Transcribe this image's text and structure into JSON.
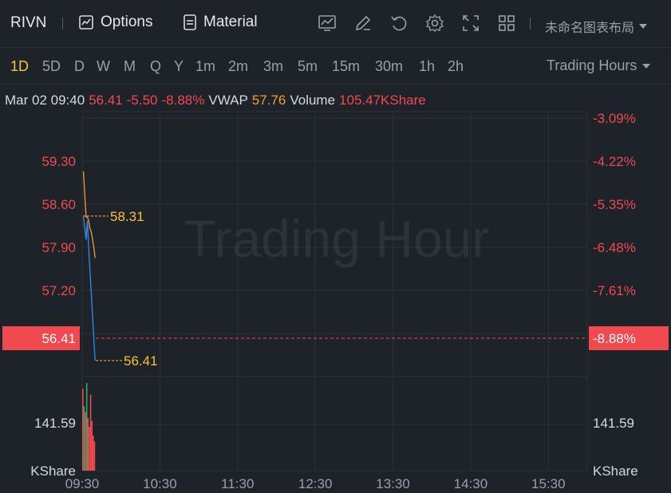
{
  "toolbar": {
    "ticker": "RIVN",
    "options_label": "Options",
    "material_label": "Material",
    "layout_name": "未命名图表布局",
    "icons": [
      "chart-icon",
      "draw-icon",
      "undo-icon",
      "settings-icon",
      "fullscreen-icon",
      "grid-layout-icon"
    ]
  },
  "periods": {
    "items": [
      "1D",
      "5D",
      "D",
      "W",
      "M",
      "Q",
      "Y",
      "1m",
      "2m",
      "3m",
      "5m",
      "15m",
      "30m",
      "1h",
      "2h"
    ],
    "active": "1D",
    "trading_hours_label": "Trading Hours"
  },
  "info": {
    "datetime": "Mar 02 09:40",
    "price": "56.41",
    "change": "-5.50",
    "change_pct": "-8.88%",
    "vwap_label": "VWAP",
    "vwap_value": "57.76",
    "volume_label": "Volume",
    "volume_value": "105.47KShare"
  },
  "chart": {
    "watermark": "Trading Hour",
    "price_ticks": [
      "59.30",
      "58.60",
      "57.90",
      "57.20"
    ],
    "pct_ticks": [
      "-3.09%",
      "-4.22%",
      "-5.35%",
      "-6.48%",
      "-7.61%"
    ],
    "current_price_label": "56.41",
    "current_pct_label": "-8.88%",
    "high_marker": "58.31",
    "last_marker": "56.41",
    "volume_tick": "141.59",
    "volume_unit": "KShare",
    "time_ticks": [
      "09:30",
      "10:30",
      "11:30",
      "12:30",
      "13:30",
      "14:30",
      "15:30"
    ],
    "colors": {
      "price_line": "#2f8fe8",
      "vwap_line": "#f59a3a",
      "up": "#1fb26b",
      "down": "#f0494f",
      "marker": "#f5c33b"
    }
  },
  "chart_data": {
    "type": "line",
    "x": [
      "09:31",
      "09:32",
      "09:33",
      "09:34",
      "09:35",
      "09:36",
      "09:37",
      "09:38",
      "09:39",
      "09:40"
    ],
    "series": [
      {
        "name": "",
        "values": [
          58.3,
          58.15,
          58.0,
          58.25,
          57.9,
          57.6,
          57.3,
          57.0,
          56.7,
          56.41
        ]
      },
      {
        "name": "VWAP",
        "values": [
          58.9,
          58.6,
          58.3,
          58.3,
          58.25,
          58.15,
          58.1,
          58.0,
          57.9,
          57.76
        ]
      }
    ],
    "volume": {
      "values": [
        280,
        220,
        200,
        300,
        180,
        150,
        260,
        170,
        120,
        100
      ],
      "direction": [
        "down",
        "up",
        "down",
        "up",
        "down",
        "down",
        "down",
        "down",
        "down",
        "down"
      ]
    },
    "ylim": [
      56.2,
      59.6
    ],
    "xlim": [
      "09:30",
      "16:00"
    ],
    "grid": true
  }
}
